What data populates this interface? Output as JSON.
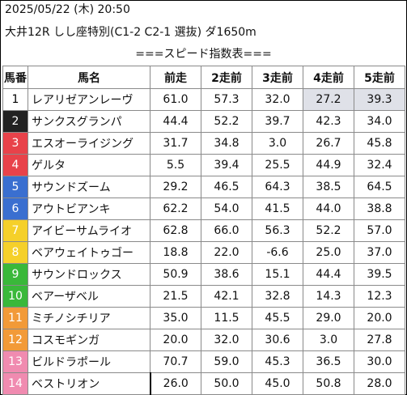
{
  "header": {
    "line1": "2025/05/22 (木) 20:50",
    "line2": "大井12R しし座特別(C1-2 C2-1 選抜) ダ1650m",
    "subtitle": "===スピード指数表==="
  },
  "table": {
    "columns": [
      "馬番",
      "馬名",
      "前走",
      "2走前",
      "3走前",
      "4走前",
      "5走前"
    ],
    "rows": [
      {
        "num": "1",
        "name": "レアリゼアンレーヴ",
        "v": [
          "61.0",
          "57.3",
          "32.0",
          "27.2",
          "39.3"
        ],
        "color": "#ffffff",
        "text": "#000000"
      },
      {
        "num": "2",
        "name": "サンクスグランパ",
        "v": [
          "44.4",
          "52.2",
          "39.7",
          "42.3",
          "34.0"
        ],
        "color": "#222222",
        "text": "#ffffff"
      },
      {
        "num": "3",
        "name": "エスオーライジング",
        "v": [
          "31.7",
          "34.8",
          "3.0",
          "26.7",
          "45.8"
        ],
        "color": "#e8424a",
        "text": "#ffffff"
      },
      {
        "num": "4",
        "name": "ゲルタ",
        "v": [
          "5.5",
          "39.4",
          "25.5",
          "44.9",
          "32.4"
        ],
        "color": "#e8424a",
        "text": "#ffffff"
      },
      {
        "num": "5",
        "name": "サウンドズーム",
        "v": [
          "29.2",
          "46.5",
          "64.3",
          "38.5",
          "64.5"
        ],
        "color": "#3a6fd0",
        "text": "#ffffff"
      },
      {
        "num": "6",
        "name": "アウトビアンキ",
        "v": [
          "62.2",
          "54.0",
          "41.5",
          "44.0",
          "38.8"
        ],
        "color": "#3a6fd0",
        "text": "#ffffff"
      },
      {
        "num": "7",
        "name": "アイビーサムライオ",
        "v": [
          "62.8",
          "66.0",
          "56.3",
          "52.2",
          "57.0"
        ],
        "color": "#f5d02a",
        "text": "#ffffff"
      },
      {
        "num": "8",
        "name": "ベアウェイトゥゴー",
        "v": [
          "18.8",
          "22.0",
          "-6.6",
          "25.0",
          "37.0"
        ],
        "color": "#f5d02a",
        "text": "#ffffff"
      },
      {
        "num": "9",
        "name": "サウンドロックス",
        "v": [
          "50.9",
          "38.6",
          "15.1",
          "44.4",
          "39.5"
        ],
        "color": "#3ab83a",
        "text": "#ffffff"
      },
      {
        "num": "10",
        "name": "ベアーザベル",
        "v": [
          "21.5",
          "42.1",
          "32.8",
          "14.3",
          "12.3"
        ],
        "color": "#3ab83a",
        "text": "#ffffff"
      },
      {
        "num": "11",
        "name": "ミチノシチリア",
        "v": [
          "35.0",
          "11.5",
          "45.5",
          "29.0",
          "20.0"
        ],
        "color": "#f29a38",
        "text": "#ffffff"
      },
      {
        "num": "12",
        "name": "コスモギンガ",
        "v": [
          "20.0",
          "32.0",
          "30.6",
          "3.0",
          "27.8"
        ],
        "color": "#f29a38",
        "text": "#ffffff"
      },
      {
        "num": "13",
        "name": "ビルドラポール",
        "v": [
          "70.7",
          "59.0",
          "45.3",
          "36.5",
          "30.0"
        ],
        "color": "#f08bb0",
        "text": "#ffffff"
      },
      {
        "num": "14",
        "name": "ベストリオン",
        "v": [
          "26.0",
          "50.0",
          "45.0",
          "50.8",
          "28.0"
        ],
        "color": "#f08bb0",
        "text": "#ffffff"
      }
    ],
    "highlight_color": "#dfe1e8"
  }
}
